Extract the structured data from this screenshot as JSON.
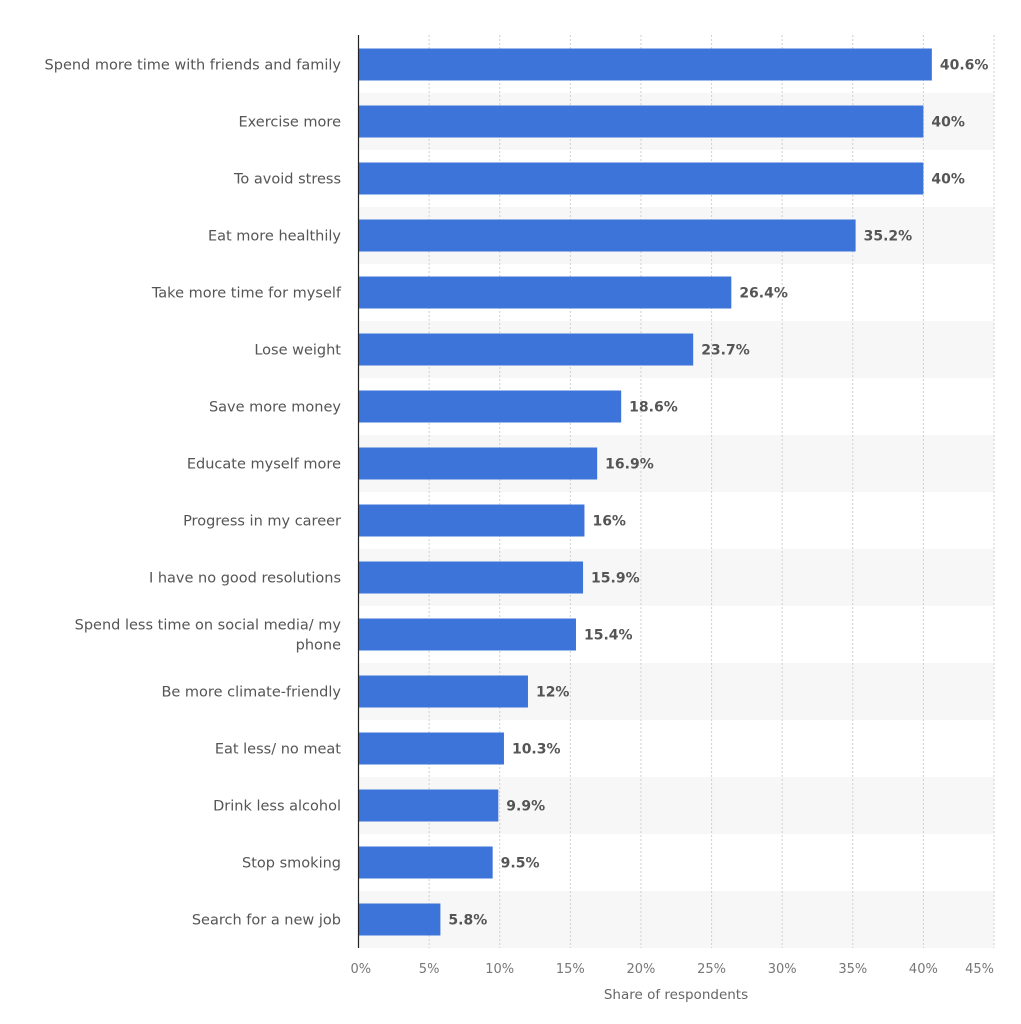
{
  "chart_data": {
    "type": "bar",
    "orientation": "horizontal",
    "title": "",
    "xlabel": "Share of respondents",
    "ylabel": "",
    "xlim": [
      0,
      45
    ],
    "grid": true,
    "bar_color": "#3d74d9",
    "categories": [
      [
        "Spend more time with friends and family"
      ],
      [
        "Exercise more"
      ],
      [
        "To avoid stress"
      ],
      [
        "Eat more healthily"
      ],
      [
        "Take more time for myself"
      ],
      [
        "Lose weight"
      ],
      [
        "Save more money"
      ],
      [
        "Educate myself more"
      ],
      [
        "Progress in my career"
      ],
      [
        "I have no good resolutions"
      ],
      [
        "Spend less time on social media/ my",
        "phone"
      ],
      [
        "Be more climate-friendly"
      ],
      [
        "Eat less/ no meat"
      ],
      [
        "Drink less alcohol"
      ],
      [
        "Stop smoking"
      ],
      [
        "Search for a new job"
      ]
    ],
    "values": [
      40.6,
      40,
      40,
      35.2,
      26.4,
      23.7,
      18.6,
      16.9,
      16,
      15.9,
      15.4,
      12,
      10.3,
      9.9,
      9.5,
      5.8
    ],
    "value_labels": [
      "40.6%",
      "40%",
      "40%",
      "35.2%",
      "26.4%",
      "23.7%",
      "18.6%",
      "16.9%",
      "16%",
      "15.9%",
      "15.4%",
      "12%",
      "10.3%",
      "9.9%",
      "9.5%",
      "5.8%"
    ],
    "ticks": [
      0,
      5,
      10,
      15,
      20,
      25,
      30,
      35,
      40,
      45
    ],
    "tick_labels": [
      "0%",
      "5%",
      "10%",
      "15%",
      "20%",
      "25%",
      "30%",
      "35%",
      "40%",
      "45%"
    ]
  }
}
